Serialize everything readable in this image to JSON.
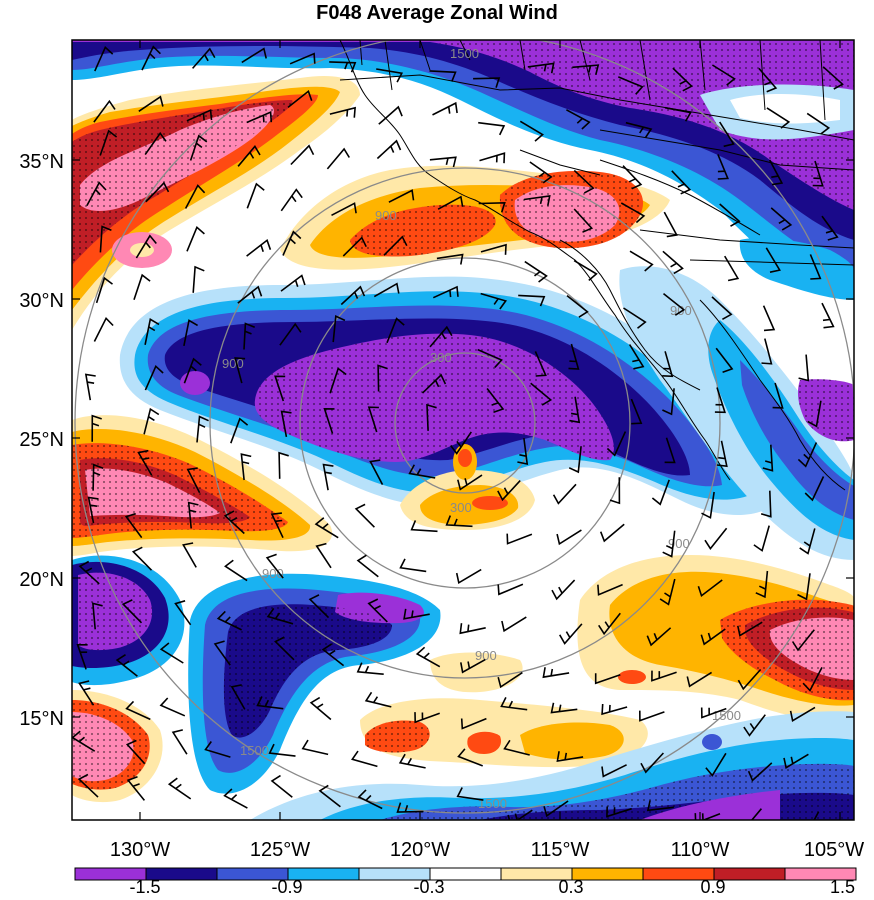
{
  "title": "F048 Average Zonal Wind",
  "colors": {
    "levels": [
      "#9b30d8",
      "#1a0a8a",
      "#3b56d4",
      "#19b2f2",
      "#b7e1fa",
      "#ffffff",
      "#ffe8a8",
      "#ffb400",
      "#ff4a12",
      "#c01e26",
      "#ff88b4"
    ],
    "coast": "#000000",
    "ring": "#8a8a8a",
    "barb": "#000000"
  },
  "lon_ticks": [
    "130°W",
    "125°W",
    "120°W",
    "115°W",
    "110°W",
    "105°W"
  ],
  "lat_ticks": [
    "35°N",
    "30°N",
    "25°N",
    "20°N",
    "15°N"
  ],
  "colorbar": {
    "labels": [
      "-1.5",
      "-0.9",
      "-0.3",
      "0.3",
      "0.9",
      "1.5"
    ]
  },
  "ring_labels": [
    "1500",
    "900",
    "900",
    "300",
    "300",
    "900",
    "900",
    "900",
    "1500",
    "1500",
    "1500",
    "900"
  ],
  "map_data": {
    "lon_range": [
      -132.5,
      -104.5
    ],
    "lat_range": [
      11,
      39
    ],
    "contour_levels": [
      -1.8,
      -1.5,
      -1.2,
      -0.9,
      -0.6,
      -0.3,
      0.3,
      0.6,
      0.9,
      1.2,
      1.5
    ]
  }
}
